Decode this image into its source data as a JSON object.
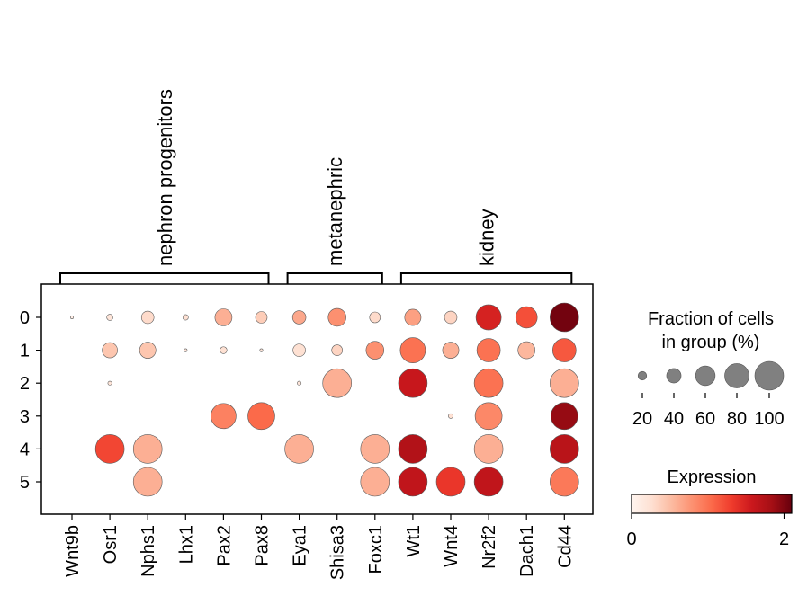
{
  "chart_data": {
    "type": "dotplot",
    "title": "",
    "xlabel": "",
    "ylabel": "",
    "genes": [
      "Wnt9b",
      "Osr1",
      "Nphs1",
      "Lhx1",
      "Pax2",
      "Pax8",
      "Eya1",
      "Shisa3",
      "Foxc1",
      "Wt1",
      "Wnt4",
      "Nr2f2",
      "Dach1",
      "Cd44"
    ],
    "groups": [
      "0",
      "1",
      "2",
      "3",
      "4",
      "5"
    ],
    "gene_groups": [
      {
        "label": "nephron progenitors",
        "start": 0,
        "end": 5
      },
      {
        "label": "metanephric",
        "start": 6,
        "end": 8
      },
      {
        "label": "kidney",
        "start": 9,
        "end": 13
      }
    ],
    "fraction_pct": [
      [
        5,
        13,
        33,
        11,
        50,
        30,
        36,
        53,
        27,
        47,
        33,
        84,
        68,
        100
      ],
      [
        0,
        43,
        47,
        5,
        15,
        5,
        33,
        27,
        53,
        84,
        47,
        76,
        50,
        76
      ],
      [
        0,
        7,
        0,
        0,
        0,
        0,
        7,
        100,
        0,
        100,
        0,
        100,
        0,
        100
      ],
      [
        0,
        0,
        0,
        0,
        84,
        92,
        0,
        0,
        0,
        0,
        9,
        92,
        0,
        92
      ],
      [
        0,
        100,
        100,
        0,
        0,
        0,
        100,
        0,
        100,
        100,
        0,
        100,
        0,
        100
      ],
      [
        0,
        0,
        100,
        0,
        0,
        0,
        0,
        0,
        100,
        100,
        100,
        100,
        0,
        100
      ]
    ],
    "expression": [
      [
        0.1,
        0.2,
        0.3,
        0.25,
        0.6,
        0.4,
        0.65,
        0.8,
        0.3,
        0.7,
        0.35,
        1.5,
        1.2,
        2.05
      ],
      [
        0,
        0.45,
        0.45,
        0.2,
        0.25,
        0.2,
        0.25,
        0.35,
        0.8,
        1.0,
        0.6,
        1.0,
        0.55,
        1.15
      ],
      [
        0,
        0.2,
        0,
        0,
        0,
        0,
        0.2,
        0.6,
        0,
        1.6,
        0,
        1.0,
        0,
        0.6
      ],
      [
        0,
        0,
        0,
        0,
        0.9,
        1.05,
        0,
        0,
        0,
        0,
        0.25,
        0.85,
        0,
        1.9
      ],
      [
        0,
        1.25,
        0.6,
        0,
        0,
        0,
        0.6,
        0,
        0.6,
        1.75,
        0,
        0.6,
        0,
        1.7
      ],
      [
        0,
        0,
        0.6,
        0,
        0,
        0,
        0,
        0,
        0.6,
        1.65,
        1.35,
        1.65,
        0,
        0.95
      ]
    ],
    "size_legend": {
      "title_lines": [
        "Fraction of cells",
        "in group (%)"
      ],
      "values": [
        20,
        40,
        60,
        80,
        100
      ],
      "labels": [
        "20",
        "40",
        "60",
        "80",
        "100"
      ]
    },
    "color_legend": {
      "title": "Expression",
      "colormap": "Reds",
      "vmin": 0,
      "vmax": 2.1,
      "ticks": [
        0,
        2
      ],
      "tick_labels": [
        "0",
        "2"
      ]
    },
    "colors": {
      "reds": [
        "#fff5f0",
        "#fee0d2",
        "#fcbba1",
        "#fc9272",
        "#fb6a4a",
        "#ef3b2c",
        "#cb181d",
        "#a50f15",
        "#67000d"
      ],
      "dot_edge": "#5a5a5a",
      "size_legend_fill": "#808080"
    }
  }
}
